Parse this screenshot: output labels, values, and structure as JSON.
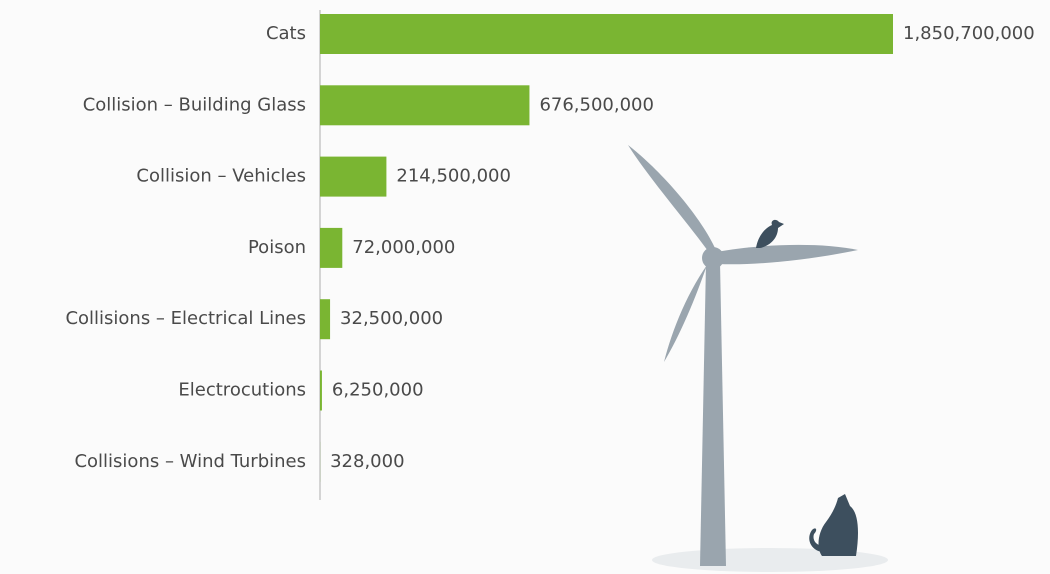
{
  "chart_data": {
    "type": "bar",
    "orientation": "horizontal",
    "categories": [
      "Cats",
      "Collision – Building Glass",
      "Collision – Vehicles",
      "Poison",
      "Collisions – Electrical Lines",
      "Electrocutions",
      "Collisions – Wind Turbines"
    ],
    "values": [
      1850700000,
      676500000,
      214500000,
      72000000,
      32500000,
      6250000,
      328000
    ],
    "value_labels": [
      "1,850,700,000",
      "676,500,000",
      "214,500,000",
      "72,000,000",
      "32,500,000",
      "6,250,000",
      "328,000"
    ],
    "color": "#7ab532"
  }
}
